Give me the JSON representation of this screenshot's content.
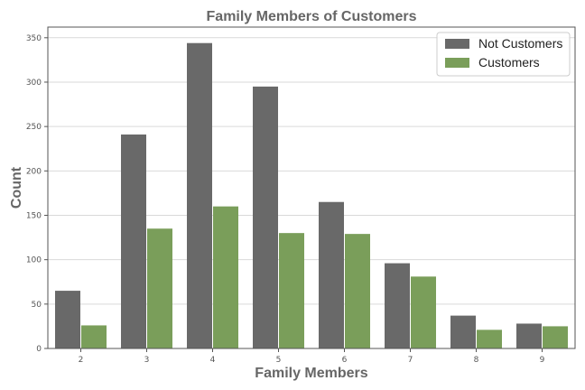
{
  "chart_data": {
    "type": "bar",
    "title": "Family Members of Customers",
    "xlabel": "Family Members",
    "ylabel": "Count",
    "categories": [
      "2",
      "3",
      "4",
      "5",
      "6",
      "7",
      "8",
      "9"
    ],
    "series": [
      {
        "name": "Not Customers",
        "color": "#696969",
        "values": [
          65,
          241,
          344,
          295,
          165,
          96,
          37,
          28
        ]
      },
      {
        "name": "Customers",
        "color": "#7a9e5a",
        "values": [
          26,
          135,
          160,
          130,
          129,
          81,
          21,
          25
        ]
      }
    ],
    "ylim": [
      0,
      362
    ],
    "yticks": [
      0,
      50,
      100,
      150,
      200,
      250,
      300,
      350
    ],
    "grid": true,
    "legend": "top-right"
  }
}
